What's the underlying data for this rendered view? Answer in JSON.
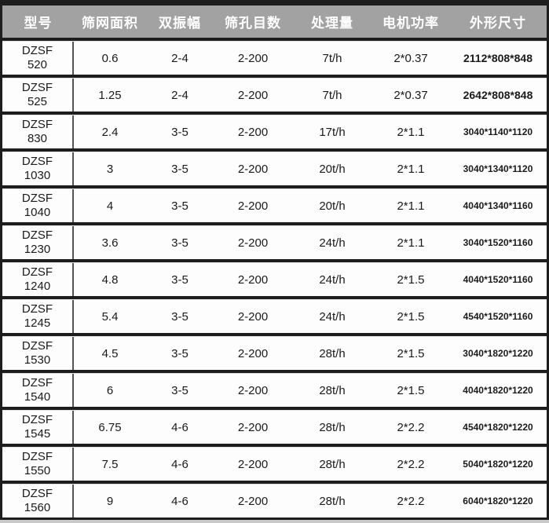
{
  "chart_data": {
    "type": "table",
    "columns": [
      "型号",
      "筛网面积",
      "双振幅",
      "筛孔目数",
      "处理量",
      "电机功率",
      "外形尺寸"
    ],
    "rows": [
      [
        "DZSF\n520",
        "0.6",
        "2-4",
        "2-200",
        "7t/h",
        "2*0.37",
        "2112*808*848"
      ],
      [
        "DZSF\n525",
        "1.25",
        "2-4",
        "2-200",
        "7t/h",
        "2*0.37",
        "2642*808*848"
      ],
      [
        "DZSF\n830",
        "2.4",
        "3-5",
        "2-200",
        "17t/h",
        "2*1.1",
        "3040*1140*1120"
      ],
      [
        "DZSF\n1030",
        "3",
        "3-5",
        "2-200",
        "20t/h",
        "2*1.1",
        "3040*1340*1120"
      ],
      [
        "DZSF\n1040",
        "4",
        "3-5",
        "2-200",
        "20t/h",
        "2*1.1",
        "4040*1340*1160"
      ],
      [
        "DZSF\n1230",
        "3.6",
        "3-5",
        "2-200",
        "24t/h",
        "2*1.1",
        "3040*1520*1160"
      ],
      [
        "DZSF\n1240",
        "4.8",
        "3-5",
        "2-200",
        "24t/h",
        "2*1.5",
        "4040*1520*1160"
      ],
      [
        "DZSF\n1245",
        "5.4",
        "3-5",
        "2-200",
        "24t/h",
        "2*1.5",
        "4540*1520*1160"
      ],
      [
        "DZSF\n1530",
        "4.5",
        "3-5",
        "2-200",
        "28t/h",
        "2*1.5",
        "3040*1820*1220"
      ],
      [
        "DZSF\n1540",
        "6",
        "3-5",
        "2-200",
        "28t/h",
        "2*1.5",
        "4040*1820*1220"
      ],
      [
        "DZSF\n1545",
        "6.75",
        "4-6",
        "2-200",
        "28t/h",
        "2*2.2",
        "4540*1820*1220"
      ],
      [
        "DZSF\n1550",
        "7.5",
        "4-6",
        "2-200",
        "28t/h",
        "2*2.2",
        "5040*1820*1220"
      ],
      [
        "DZSF\n1560",
        "9",
        "4-6",
        "2-200",
        "28t/h",
        "2*2.2",
        "6040*1820*1220"
      ]
    ],
    "title": "",
    "layout_hints": {
      "header_position": "top",
      "grid": "horizontal-bands",
      "model_column_divider": true
    }
  },
  "colors": {
    "header_bg": "#a2a2a2",
    "header_text": "#ffffff",
    "frame_dark": "#1d1d1d",
    "row_bg": "#fdfdfd",
    "cell_text": "#1a1a1a",
    "column_divider": "#555555",
    "page_bg": "#c9c9c9"
  }
}
